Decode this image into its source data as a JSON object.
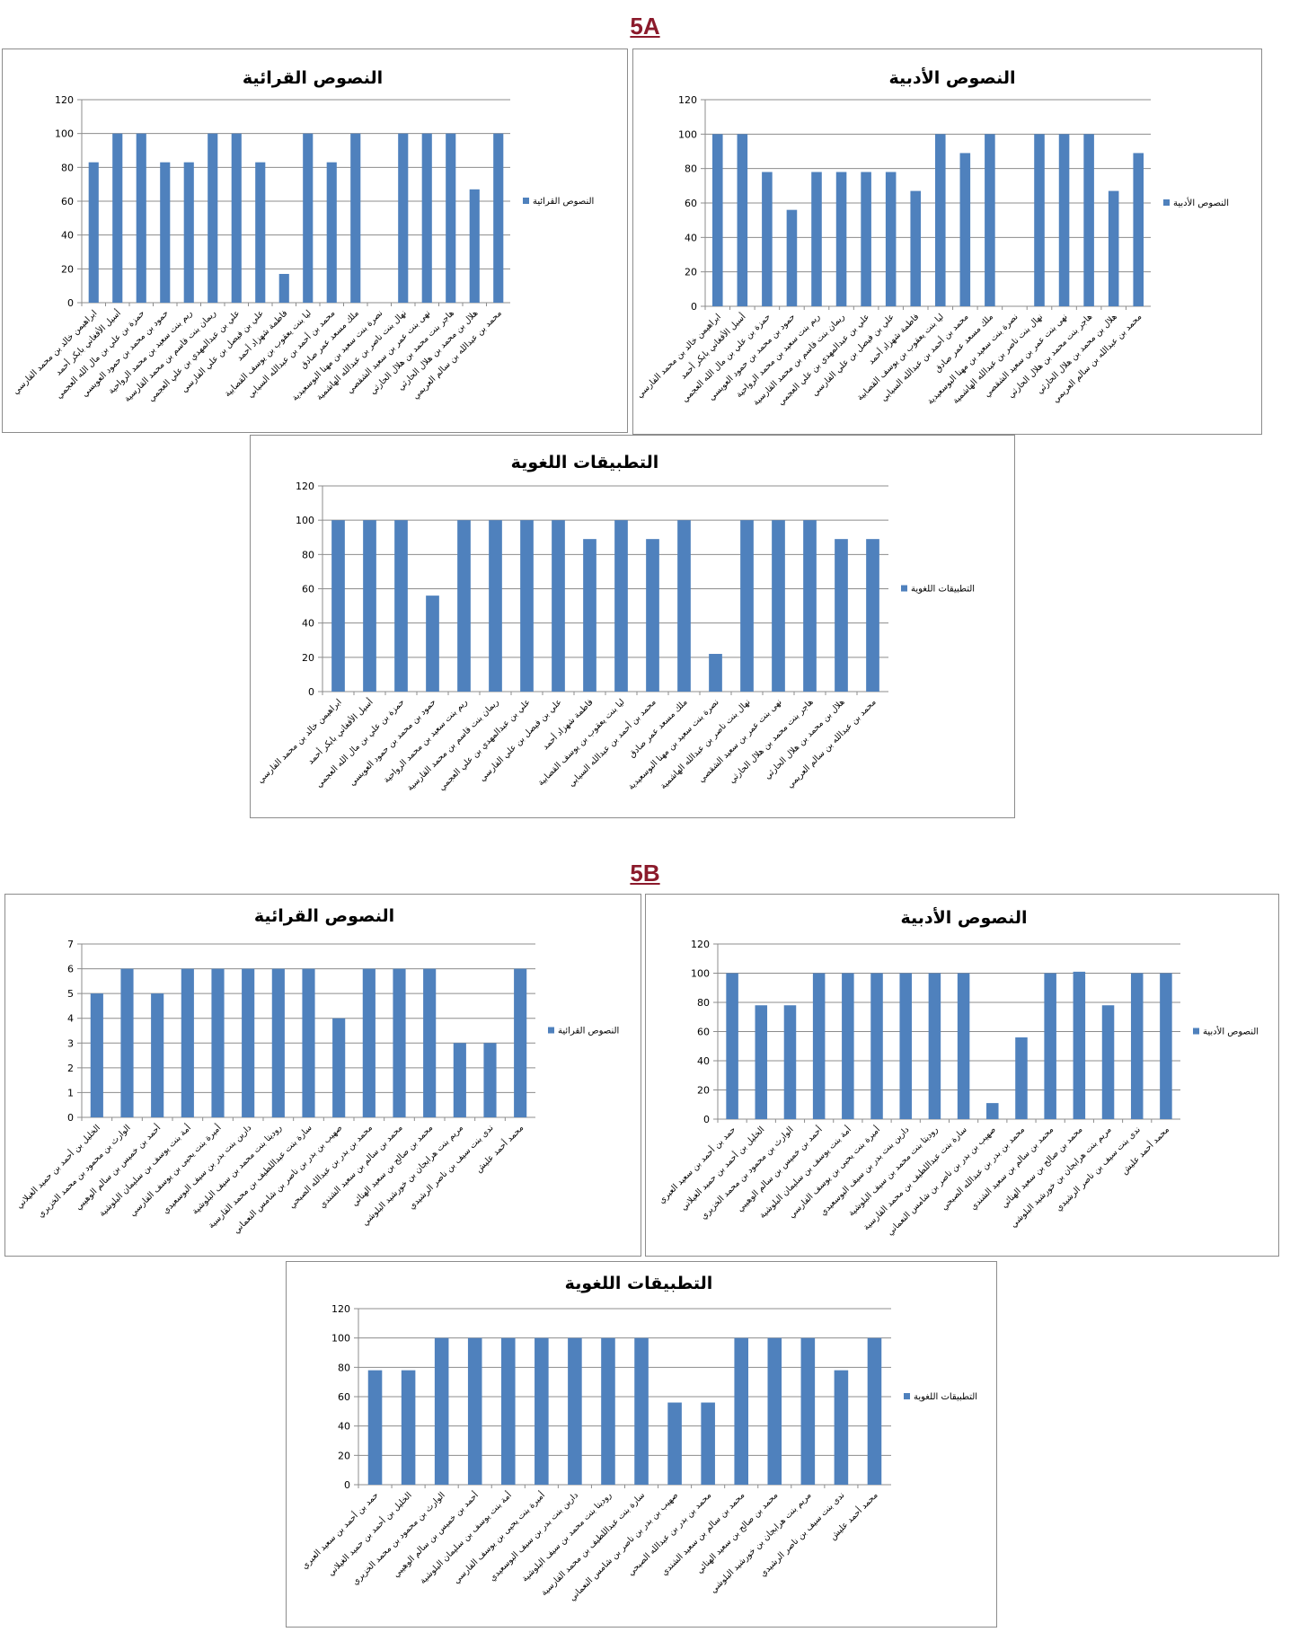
{
  "sections": [
    {
      "label": "5A"
    },
    {
      "label": "5B"
    }
  ],
  "colors": {
    "bar": "#4f81bd",
    "grid": "#8c8c8c",
    "section": "#8b1a2b"
  },
  "chart_data": [
    {
      "type": "bar",
      "title": "النصوص القرائية",
      "legend": "النصوص القرائية",
      "legend_position": "right",
      "ylim": [
        0,
        120
      ],
      "yticks": [
        0,
        20,
        40,
        60,
        80,
        100,
        120
      ],
      "grid": true,
      "categories": [
        "ابراهيمن خالد بن محمد الفارسي",
        "أسيل الأفغاني بابكر أحمد",
        "حمزة بن علي بن مال الله العجمي",
        "حمود بن محمد بن حمود العويسي",
        "ريم بنت سعيد بن محمد الرواحية",
        "ريمان بنت قاسم بن محمد القارسية",
        "علي بن عبدالمهدي بن علي العجمي",
        "علي بن فيصل بن علي الفارسي",
        "فاطمة شهزاد أحمد",
        "ليا بنت يعقوب بن يوسف القصابية",
        "محمد بن أحمد بن عبدالله السيابي",
        "ملك مسعد عمر صادق",
        "نصرة بنت سعيد بن مهنا البوسعيدية",
        "نهال بنت ناصر بن عبدالله الهاشمية",
        "نهى بنت عمر بن سعيد الشقصي",
        "هاجر بنت محمد بن هلال الحارثي",
        "هلال بن محمد بن هلال الحارثي",
        "محمد بن عبدالله بن سالم العريمي"
      ],
      "values": [
        83,
        100,
        100,
        83,
        83,
        100,
        100,
        83,
        17,
        100,
        83,
        100,
        0,
        100,
        100,
        100,
        67,
        100
      ]
    },
    {
      "type": "bar",
      "title": "النصوص الأدبية",
      "legend": "النصوص الأدبية",
      "legend_position": "right",
      "ylim": [
        0,
        120
      ],
      "yticks": [
        0,
        20,
        40,
        60,
        80,
        100,
        120
      ],
      "grid": true,
      "categories": [
        "ابراهيمن خالد بن محمد الفارسي",
        "أسيل الأفغاني بابكر أحمد",
        "حمزة بن علي بن مال الله العجمي",
        "حمود بن محمد بن حمود العويسي",
        "ريم بنت سعيد بن محمد الرواحية",
        "ريمان بنت قاسم بن محمد القارسية",
        "علي بن عبدالمهدي بن علي العجمي",
        "علي بن فيصل بن علي الفارسي",
        "فاطمة شهزاد أحمد",
        "ليا بنت يعقوب بن يوسف القصابية",
        "محمد بن أحمد بن عبدالله السيابي",
        "ملك مسعد عمر صادق",
        "نصرة بنت سعيد بن مهنا البوسعيدية",
        "نهال بنت ناصر بن عبدالله الهاشمية",
        "نهى بنت عمر بن سعيد الشقصي",
        "هاجر بنت محمد بن هلال الحارثي",
        "هلال بن محمد بن هلال الحارثي",
        "محمد بن عبدالله بن سالم العريمي"
      ],
      "values": [
        100,
        100,
        78,
        56,
        78,
        78,
        78,
        78,
        67,
        100,
        89,
        100,
        0,
        100,
        100,
        100,
        67,
        89
      ]
    },
    {
      "type": "bar",
      "title": "التطبيقات اللغوية",
      "legend": "التطبيقات اللغوية",
      "legend_position": "right",
      "ylim": [
        0,
        120
      ],
      "yticks": [
        0,
        20,
        40,
        60,
        80,
        100,
        120
      ],
      "grid": true,
      "categories": [
        "ابراهيمن خالد بن محمد الفارسي",
        "أسيل الأفغاني بابكر أحمد",
        "حمزة بن علي بن مال الله العجمي",
        "حمود بن محمد بن حمود العويسي",
        "ريم بنت سعيد بن محمد الرواحية",
        "ريمان بنت قاسم بن محمد القارسية",
        "علي بن عبدالمهدي بن علي العجمي",
        "علي بن فيصل بن علي الفارسي",
        "فاطمة شهزاد أحمد",
        "ليا بنت يعقوب بن يوسف القصابية",
        "محمد بن أحمد بن عبدالله السيابي",
        "ملك مسعد عمر صادق",
        "نصرة بنت سعيد بن مهنا البوسعيدية",
        "نهال بنت ناصر بن عبدالله الهاشمية",
        "نهى بنت عمر بن سعيد الشقصي",
        "هاجر بنت محمد بن هلال الحارثي",
        "هلال بن محمد بن هلال الحارثي",
        "محمد بن عبدالله بن سالم العريمي"
      ],
      "values": [
        100,
        100,
        100,
        56,
        100,
        100,
        100,
        100,
        89,
        100,
        89,
        100,
        22,
        100,
        100,
        100,
        89,
        89
      ]
    },
    {
      "type": "bar",
      "title": "النصوص القرائية",
      "legend": "النصوص القرائية",
      "legend_position": "right",
      "ylim": [
        0,
        7
      ],
      "yticks": [
        0,
        1,
        2,
        3,
        4,
        5,
        6,
        7
      ],
      "grid": true,
      "categories": [
        "الخليل بن أحمد بن حميد الغيلاني",
        "الوارث بن محمود بن محمد الخزيري",
        "أحمد بن خميس بن سالم الوهيبي",
        "أمة بنت يوسف بن سليمان البلوشية",
        "أميرة بنت يحيى بن يوسف الفارسي",
        "دارين بنت بدر بن سيف البوسعيدي",
        "روديتا بنت محمد بن سيف البلوشية",
        "سارة بنت عبداللطيف بن محمد القارسية",
        "صهيب بن بدر بن ناصر بن شامس النعماني",
        "محمد بن بدر بن عبدالله الصبحي",
        "محمد بن سالم بن سعيد الشندي",
        "محمد بن صالح بن سعيد الهنائي",
        "مريم بنت هرابجان بن خورشيد البلوشي",
        "ندى بنت سيف بن ناصر الرشيدي",
        "محمد أحمد عليش"
      ],
      "values": [
        5,
        6,
        5,
        6,
        6,
        6,
        6,
        6,
        4,
        6,
        6,
        6,
        3,
        3,
        6
      ]
    },
    {
      "type": "bar",
      "title": "النصوص الأدبية",
      "legend": "النصوص الأدبية",
      "legend_position": "right",
      "ylim": [
        0,
        120
      ],
      "yticks": [
        0,
        20,
        40,
        60,
        80,
        100,
        120
      ],
      "grid": true,
      "categories": [
        "حمد بن أحمد بن سعيد العبري",
        "الخليل بن أحمد بن حميد الغيلاني",
        "الوارث بن محمود بن محمد الخزيري",
        "أحمد بن خميس بن سالم الوهيبي",
        "أمة بنت يوسف بن سليمان البلوشية",
        "أميرة بنت يحيى بن يوسف الفارسي",
        "دارين بنت بدر بن سيف البوسعيدي",
        "روديتا بنت محمد بن سيف البلوشية",
        "سارة بنت عبداللطيف بن محمد القارسية",
        "صهيب بن بدر بن ناصر بن شامس النعماني",
        "محمد بن بدر بن عبدالله الصبحي",
        "محمد بن سالم بن سعيد الشندي",
        "محمد بن صالح بن سعيد الهنائي",
        "مريم بنت هرابجان بن خورشيد البلوشي",
        "ندى بنت سيف بن ناصر الرشيدي",
        "محمد أحمد عليش"
      ],
      "values": [
        100,
        78,
        78,
        100,
        100,
        100,
        100,
        100,
        100,
        11,
        56,
        100,
        101,
        78,
        100,
        100
      ]
    },
    {
      "type": "bar",
      "title": "التطبيقات اللغوية",
      "legend": "التطبيقات اللغوية",
      "legend_position": "right",
      "ylim": [
        0,
        120
      ],
      "yticks": [
        0,
        20,
        40,
        60,
        80,
        100,
        120
      ],
      "grid": true,
      "categories": [
        "حمد بن أحمد بن سعيد العبري",
        "الخليل بن أحمد بن حميد الغيلاني",
        "الوارث بن محمود بن محمد الخزيري",
        "أحمد بن خميس بن سالم الوهيبي",
        "أمة بنت يوسف بن سليمان البلوشية",
        "أميرة بنت يحيى بن يوسف الفارسي",
        "دارين بنت بدر بن سيف البوسعيدي",
        "روديتا بنت محمد بن سيف البلوشية",
        "سارة بنت عبداللطيف بن محمد القارسية",
        "صهيب بن بدر بن ناصر بن شامس النعماني",
        "محمد بن بدر بن عبدالله الصبحي",
        "محمد بن سالم بن سعيد الشندي",
        "محمد بن صالح بن سعيد الهنائي",
        "مريم بنت هرابجان بن خورشيد البلوشي",
        "ندى بنت سيف بن ناصر الرشيدي",
        "محمد أحمد عليش"
      ],
      "values": [
        78,
        78,
        100,
        100,
        100,
        100,
        100,
        100,
        100,
        56,
        56,
        100,
        100,
        100,
        78,
        100
      ]
    }
  ]
}
